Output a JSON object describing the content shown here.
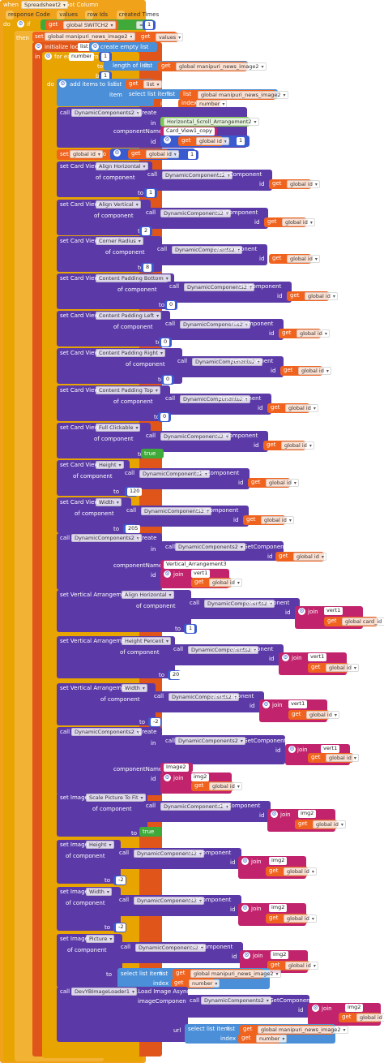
{
  "event": {
    "when": "when",
    "component": "Spreadsheet2",
    "event_name": "Got Column",
    "params": [
      "response Code",
      "values",
      "row Ids",
      "created Times"
    ]
  },
  "if_block": {
    "do": "do",
    "if": "if",
    "get": "get",
    "var": "global SWITCH2",
    "op": "=",
    "value": "1"
  },
  "then": "then",
  "set_news": {
    "set": "set",
    "var": "global manipuri_news_image2",
    "to": "to",
    "get": "get",
    "val": "values"
  },
  "init_local": {
    "label": "initialize local",
    "name": "list",
    "to": "to",
    "value": "create empty list"
  },
  "in_label": "in",
  "for_each": {
    "label": "for each",
    "var": "number",
    "from": "from",
    "from_val": "1",
    "to": "to",
    "length_label": "length of list",
    "list": "list",
    "get": "get",
    "list_var": "global manipuri_news_image2",
    "by": "by",
    "by_val": "1"
  },
  "do_label": "do",
  "add_items": {
    "label": "add items to list",
    "list": "list",
    "get": "get",
    "list_var": "list",
    "item": "item",
    "select": "select list item",
    "list2": "list",
    "list2_var": "global manipuri_news_image2",
    "index": "index",
    "index_var": "number"
  },
  "create1": {
    "call": "call",
    "component": "DynamicComponents2",
    "method": ".Create",
    "in": "in",
    "in_val": "Horizontal_Scroll_Arrangement2",
    "component_name": "componentName",
    "name_val": "Card_View1_copy",
    "id": "id",
    "get": "get",
    "id_var": "global id",
    "plus": "+",
    "one": "1"
  },
  "set_id": {
    "set": "set",
    "var": "global id",
    "to": "to",
    "get": "get",
    "val": "global id",
    "plus": "+",
    "one": "1"
  },
  "card_props": [
    {
      "set": "set Card View",
      "prop": "Align Horizontal",
      "of": "of component",
      "call": "call",
      "comp": "DynamicComponents2",
      "method": ".GetComponent",
      "id": "id",
      "get": "get",
      "var": "global id",
      "to": "to",
      "val": "1"
    },
    {
      "set": "set Card View",
      "prop": "Align Vertical",
      "of": "of component",
      "call": "call",
      "comp": "DynamicComponents2",
      "method": ".GetComponent",
      "id": "id",
      "get": "get",
      "var": "global id",
      "to": "to",
      "val": "2"
    },
    {
      "set": "set Card View",
      "prop": "Corner Radius",
      "of": "of component",
      "call": "call",
      "comp": "DynamicComponents2",
      "method": ".GetComponent",
      "id": "id",
      "get": "get",
      "var": "global id",
      "to": "to",
      "val": "8"
    },
    {
      "set": "set Card View",
      "prop": "Content Padding Bottom",
      "of": "of component",
      "call": "call",
      "comp": "DynamicComponents2",
      "method": ".GetComponent",
      "id": "id",
      "get": "get",
      "var": "global id",
      "to": "to",
      "val": "0"
    },
    {
      "set": "set Card View",
      "prop": "Content Padding Left",
      "of": "of component",
      "call": "call",
      "comp": "DynamicComponents2",
      "method": ".GetComponent",
      "id": "id",
      "get": "get",
      "var": "global id",
      "to": "to",
      "val": "0"
    },
    {
      "set": "set Card View",
      "prop": "Content Padding Right",
      "of": "of component",
      "call": "call",
      "comp": "DynamicComponents2",
      "method": ".GetComponent",
      "id": "id",
      "get": "get",
      "var": "global id",
      "to": "to",
      "val": "0"
    },
    {
      "set": "set Card View",
      "prop": "Content Padding Top",
      "of": "of component",
      "call": "call",
      "comp": "DynamicComponents2",
      "method": ".GetComponent",
      "id": "id",
      "get": "get",
      "var": "global id",
      "to": "to",
      "val": "0"
    },
    {
      "set": "set Card View",
      "prop": "Full Clickable",
      "of": "of component",
      "call": "call",
      "comp": "DynamicComponents2",
      "method": ".GetComponent",
      "id": "id",
      "get": "get",
      "var": "global id",
      "to": "to",
      "val": "true"
    },
    {
      "set": "set Card View",
      "prop": "Height",
      "of": "of component",
      "call": "call",
      "comp": "DynamicComponents2",
      "method": ".GetComponent",
      "id": "id",
      "get": "get",
      "var": "global id",
      "to": "to",
      "val": "120"
    },
    {
      "set": "set Card View",
      "prop": "Width",
      "of": "of component",
      "call": "call",
      "comp": "DynamicComponents2",
      "method": ".GetComponent",
      "id": "id",
      "get": "get",
      "var": "global id",
      "to": "to",
      "val": "205"
    }
  ],
  "create2": {
    "call": "call",
    "component": "DynamicComponents2",
    "method": ".Create",
    "in": "in",
    "in_call": "call",
    "in_comp": "DynamicComponents2",
    "in_method": ".GetComponent",
    "in_id": "id",
    "in_get": "get",
    "in_var": "global id",
    "component_name": "componentName",
    "name_val": "Vertical_Arrangement3",
    "id": "id",
    "join": "join",
    "str": "vert1",
    "get": "get",
    "var": "global id"
  },
  "va_props": [
    {
      "set": "set Vertical Arrangement",
      "prop": "Align Horizontal",
      "of": "of component",
      "call": "call",
      "comp": "DynamicComponents2",
      "method": ".GetComponent",
      "id": "id",
      "join": "join",
      "str": "vert1",
      "get": "get",
      "var": "global card_id",
      "to": "to",
      "val": "1"
    },
    {
      "set": "set Vertical Arrangement",
      "prop": "Height Percent",
      "of": "of component",
      "call": "call",
      "comp": "DynamicComponents2",
      "method": ".GetComponent",
      "id": "id",
      "join": "join",
      "str": "vert1",
      "get": "get",
      "var": "global id",
      "to": "to",
      "val": "20"
    },
    {
      "set": "set Vertical Arrangement",
      "prop": "Width",
      "of": "of component",
      "call": "call",
      "comp": "DynamicComponents2",
      "method": ".GetComponent",
      "id": "id",
      "join": "join",
      "str": "vert1",
      "get": "get",
      "var": "global id",
      "to": "to",
      "val": "-2"
    }
  ],
  "create3": {
    "call": "call",
    "component": "DynamicComponents2",
    "method": ".Create",
    "in": "in",
    "in_call": "call",
    "in_comp": "DynamicComponents2",
    "in_method": ".GetComponent",
    "in_id": "id",
    "in_join": "join",
    "in_str": "vert1",
    "in_get": "get",
    "in_var": "global id",
    "component_name": "componentName",
    "name_val": "Image2",
    "id": "id",
    "join": "join",
    "str": "img2",
    "get": "get",
    "var": "global id"
  },
  "img_props": [
    {
      "set": "set Image",
      "prop": "Scale Picture To Fit",
      "of": "of component",
      "call": "call",
      "comp": "DynamicComponents2",
      "method": ".GetComponent",
      "id": "id",
      "join": "join",
      "str": "img2",
      "get": "get",
      "var": "global id",
      "to": "to",
      "val": "true"
    },
    {
      "set": "set Image",
      "prop": "Height",
      "of": "of component",
      "call": "call",
      "comp": "DynamicComponents2",
      "method": ".GetComponent",
      "id": "id",
      "join": "join",
      "str": "img2",
      "get": "get",
      "var": "global id",
      "to": "to",
      "val": "-2"
    },
    {
      "set": "set Image",
      "prop": "Width",
      "of": "of component",
      "call": "call",
      "comp": "DynamicComponents2",
      "method": ".GetComponent",
      "id": "id",
      "join": "join",
      "str": "img2",
      "get": "get",
      "var": "global id",
      "to": "to",
      "val": "-2"
    },
    {
      "set": "set Image",
      "prop": "Picture",
      "of": "of component",
      "call": "call",
      "comp": "DynamicComponents2",
      "method": ".GetComponent",
      "id": "id",
      "join": "join",
      "str": "img2",
      "get": "get",
      "var": "global id",
      "to": "to",
      "sel": "select list item",
      "list": "list",
      "list_get": "get",
      "list_var": "global manipuri_news_image2",
      "index": "index",
      "idx_get": "get",
      "idx_var": "number"
    }
  ],
  "loader": {
    "call": "call",
    "comp": "DevYBImageLoader1",
    "method": ".Load Image Async",
    "image_component": "imageComponent",
    "in_call": "call",
    "in_comp": "DynamicComponents2",
    "in_method": ".GetComponent",
    "id": "id",
    "join": "join",
    "str": "img2",
    "get": "get",
    "var": "global id",
    "url": "url",
    "sel": "select list item",
    "list": "list",
    "list_get": "get",
    "list_var": "global manipuri_news_image2",
    "index": "index",
    "idx_get": "get",
    "idx_var": "number"
  }
}
